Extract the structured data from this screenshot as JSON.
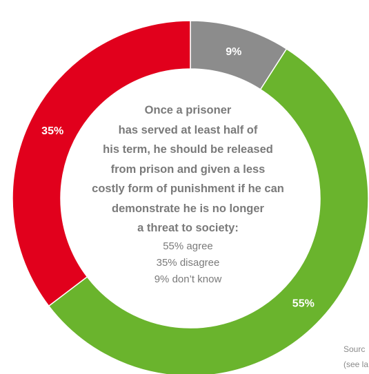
{
  "chart_data": {
    "type": "pie",
    "donut": true,
    "categories": [
      "don't know",
      "agree",
      "disagree"
    ],
    "values": [
      9,
      55,
      35
    ],
    "slice_labels": [
      "9%",
      "55%",
      "35%"
    ],
    "colors": [
      "#8c8c8c",
      "#6ab42d",
      "#e1001c"
    ],
    "center_title": "Once a prisoner\nhas served at least half of\nhis term, he should be released\nfrom prison and given a less\ncostly form of punishment if he can\ndemonstrate he is no longer\na threat to society:",
    "center_stats": [
      "55% agree",
      "35% disagree",
      "9% don’t know"
    ]
  },
  "source": {
    "line1": "Sourc",
    "line2": "(see la"
  }
}
